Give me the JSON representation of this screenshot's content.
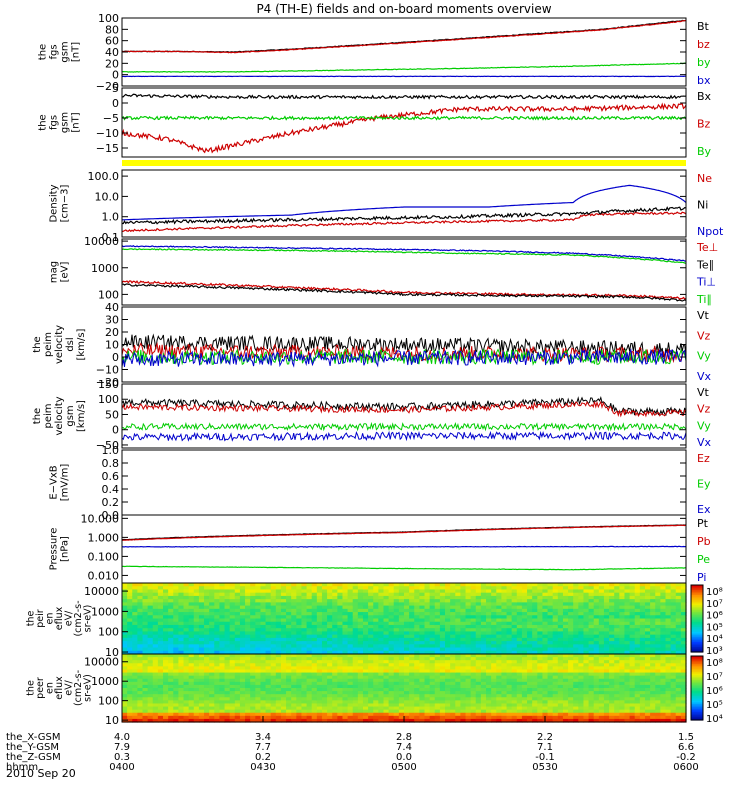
{
  "title": "P4 (TH-E) fields and on-board moments overview",
  "date": "2010 Sep 20",
  "chart_data": {
    "type": "line",
    "title": "P4 (TH-E) fields and on-board moments overview",
    "x": {
      "label": "hhmm",
      "ticks": [
        "0400",
        "0430",
        "0500",
        "0530",
        "0600"
      ],
      "ephemeris": [
        {
          "label": "the_X-GSM",
          "values": [
            "4.0",
            "3.4",
            "2.8",
            "2.2",
            "1.5"
          ]
        },
        {
          "label": "the_Y-GSM",
          "values": [
            "7.9",
            "7.7",
            "7.4",
            "7.1",
            "6.6"
          ]
        },
        {
          "label": "the_Z-GSM",
          "values": [
            "0.3",
            "0.2",
            "0.0",
            "-0.1",
            "-0.2"
          ]
        }
      ]
    },
    "panels": [
      {
        "ylabel": [
          "the",
          "fgs",
          "gsm",
          "[nT]"
        ],
        "scale": "linear",
        "ylim": [
          -20,
          100
        ],
        "tick_values": [
          -20,
          0,
          20,
          40,
          60,
          80,
          100
        ],
        "tick_labels": [
          "−20",
          "0",
          "20",
          "40",
          "60",
          "80",
          "100"
        ],
        "series": [
          {
            "name": "Bt",
            "color": "#000000",
            "x": [
              0,
              0.1,
              0.2,
              0.3,
              0.5,
              0.7,
              0.85,
              1.0
            ],
            "y": [
              41,
              41,
              40,
              45,
              57,
              70,
              80,
              96
            ],
            "noise": 0.6
          },
          {
            "name": "bz",
            "color": "#cc0000",
            "x": [
              0,
              0.1,
              0.2,
              0.3,
              0.5,
              0.7,
              0.85,
              1.0
            ],
            "y": [
              41,
              41,
              39,
              44,
              56,
              69,
              79,
              95
            ],
            "noise": 0.6
          },
          {
            "name": "by",
            "color": "#00cc00",
            "x": [
              0,
              0.2,
              0.4,
              0.6,
              0.8,
              1.0
            ],
            "y": [
              5,
              5,
              8,
              11,
              15,
              20
            ],
            "noise": 0.5
          },
          {
            "name": "bx",
            "color": "#0000cc",
            "x": [
              0,
              0.3,
              0.6,
              0.9,
              1.0
            ],
            "y": [
              -3,
              -3,
              -3,
              -3,
              -3
            ],
            "noise": 0.3
          }
        ]
      },
      {
        "ylabel": [
          "the",
          "fgs",
          "gsm",
          "[nT]"
        ],
        "scale": "linear",
        "ylim": [
          -18,
          5
        ],
        "tick_values": [
          -15,
          -10,
          -5,
          0,
          5
        ],
        "tick_labels": [
          "−15",
          "−10",
          "−5",
          "0",
          "5"
        ],
        "series": [
          {
            "name": "Bx",
            "color": "#000000",
            "x": [
              0,
              0.2,
              0.4,
              0.6,
              0.8,
              1.0
            ],
            "y": [
              2.5,
              2.0,
              2.0,
              2.0,
              2.0,
              2.0
            ],
            "noise": 0.5
          },
          {
            "name": "Bz",
            "color": "#cc0000",
            "x": [
              0,
              0.08,
              0.15,
              0.3,
              0.45,
              0.6,
              0.8,
              1.0
            ],
            "y": [
              -10,
              -12,
              -16,
              -10,
              -5,
              -2,
              -2,
              -1
            ],
            "noise": 0.8
          },
          {
            "name": "By",
            "color": "#00cc00",
            "x": [
              0,
              0.2,
              0.4,
              0.6,
              0.8,
              1.0
            ],
            "y": [
              -5,
              -5,
              -5,
              -5,
              -5,
              -5
            ],
            "noise": 0.5
          }
        ]
      },
      {
        "ylabel": [
          "Density",
          "[cm−3]"
        ],
        "scale": "log",
        "ylim": [
          0.1,
          200
        ],
        "tick_values": [
          0.1,
          1.0,
          10.0,
          100.0
        ],
        "tick_labels": [
          "0.1",
          "1.0",
          "10.0",
          "100.0"
        ],
        "series": [
          {
            "name": "Ne",
            "color": "#cc0000",
            "x": [
              0,
              0.2,
              0.5,
              0.8,
              0.82,
              0.88,
              1.0
            ],
            "y": [
              0.2,
              0.3,
              0.5,
              0.7,
              1.2,
              1.4,
              1.5
            ],
            "noise": 0.05
          },
          {
            "name": "Ni",
            "color": "#000000",
            "x": [
              0,
              0.3,
              0.6,
              0.8,
              0.9,
              1.0
            ],
            "y": [
              0.5,
              0.7,
              1.0,
              1.4,
              2.0,
              2.6
            ],
            "noise": 0.08
          },
          {
            "name": "Npot",
            "color": "#0000cc",
            "x": [
              0,
              0.3,
              0.5,
              0.65,
              0.8,
              0.9,
              1.0
            ],
            "y": [
              0.7,
              1.2,
              3.0,
              3.0,
              5.0,
              35.0,
              5.0
            ],
            "noise": 0
          }
        ]
      },
      {
        "ylabel": [
          "mag",
          "[eV]"
        ],
        "scale": "log",
        "ylim": [
          40,
          12000
        ],
        "tick_values": [
          100,
          1000,
          10000
        ],
        "tick_labels": [
          "100",
          "1000",
          "10000"
        ],
        "series": [
          {
            "name": "Te⊥",
            "color": "#cc0000",
            "x": [
              0,
              0.3,
              0.5,
              0.7,
              0.9,
              1.0
            ],
            "y": [
              300,
              180,
              120,
              100,
              90,
              70
            ],
            "noise": 0.04
          },
          {
            "name": "Te∥",
            "color": "#000000",
            "x": [
              0,
              0.3,
              0.5,
              0.7,
              0.9,
              1.0
            ],
            "y": [
              230,
              150,
              100,
              90,
              80,
              60
            ],
            "noise": 0.04
          },
          {
            "name": "Ti⊥",
            "color": "#0000cc",
            "x": [
              0,
              0.3,
              0.6,
              0.8,
              1.0
            ],
            "y": [
              6500,
              5500,
              4500,
              3500,
              1800
            ],
            "noise": 0.02
          },
          {
            "name": "Ti∥",
            "color": "#00cc00",
            "x": [
              0,
              0.3,
              0.6,
              0.8,
              1.0
            ],
            "y": [
              5000,
              4500,
              3500,
              3000,
              1500
            ],
            "noise": 0.02
          }
        ]
      },
      {
        "ylabel": [
          "the",
          "peim",
          "velocity",
          "dsl",
          "[km/s]"
        ],
        "scale": "linear",
        "ylim": [
          -20,
          40
        ],
        "tick_values": [
          -20,
          -10,
          0,
          10,
          20,
          30,
          40
        ],
        "tick_labels": [
          "−20",
          "−10",
          "0",
          "10",
          "20",
          "30",
          "40"
        ],
        "series": [
          {
            "name": "Vt",
            "color": "#000000",
            "x": [
              0,
              0.5,
              1.0
            ],
            "y": [
              12,
              10,
              6
            ],
            "noise": 6
          },
          {
            "name": "Vz",
            "color": "#cc0000",
            "x": [
              0,
              0.5,
              1.0
            ],
            "y": [
              5,
              3,
              2
            ],
            "noise": 6
          },
          {
            "name": "Vy",
            "color": "#00cc00",
            "x": [
              0,
              0.5,
              1.0
            ],
            "y": [
              0,
              0,
              0
            ],
            "noise": 6
          },
          {
            "name": "Vx",
            "color": "#0000cc",
            "x": [
              0,
              0.5,
              1.0
            ],
            "y": [
              -2,
              -1,
              0
            ],
            "noise": 6
          }
        ]
      },
      {
        "ylabel": [
          "the",
          "peim",
          "velocity",
          "gsm",
          "[km/s]"
        ],
        "scale": "linear",
        "ylim": [
          -60,
          150
        ],
        "tick_values": [
          -50,
          0,
          50,
          100,
          150
        ],
        "tick_labels": [
          "−50",
          "0",
          "50",
          "100",
          "150"
        ],
        "series": [
          {
            "name": "Vt",
            "color": "#000000",
            "x": [
              0,
              0.5,
              0.85,
              0.88,
              1.0
            ],
            "y": [
              90,
              75,
              95,
              60,
              60
            ],
            "noise": 12
          },
          {
            "name": "Vz",
            "color": "#cc0000",
            "x": [
              0,
              0.5,
              0.85,
              0.88,
              1.0
            ],
            "y": [
              75,
              65,
              85,
              55,
              55
            ],
            "noise": 10
          },
          {
            "name": "Vy",
            "color": "#00cc00",
            "x": [
              0,
              0.5,
              1.0
            ],
            "y": [
              10,
              10,
              10
            ],
            "noise": 10
          },
          {
            "name": "Vx",
            "color": "#0000cc",
            "x": [
              0,
              0.5,
              1.0
            ],
            "y": [
              -25,
              -20,
              -20
            ],
            "noise": 12
          }
        ]
      },
      {
        "ylabel": [
          "E−VxB",
          "[mV/m]"
        ],
        "scale": "linear",
        "ylim": [
          0,
          1
        ],
        "tick_values": [
          0.0,
          0.2,
          0.4,
          0.6,
          0.8,
          1.0
        ],
        "tick_labels": [
          "0.0",
          "0.2",
          "0.4",
          "0.6",
          "0.8",
          "1.0"
        ],
        "series": [
          {
            "name": "Ez",
            "color": "#cc0000",
            "x": [],
            "y": [],
            "noise": 0
          },
          {
            "name": "Ey",
            "color": "#00cc00",
            "x": [],
            "y": [],
            "noise": 0
          },
          {
            "name": "Ex",
            "color": "#0000cc",
            "x": [],
            "y": [],
            "noise": 0
          }
        ]
      },
      {
        "ylabel": [
          "Pressure",
          "[nPa]"
        ],
        "scale": "log",
        "ylim": [
          0.004,
          15
        ],
        "tick_values": [
          0.01,
          0.1,
          1.0,
          10.0
        ],
        "tick_labels": [
          "0.010",
          "0.100",
          "1.000",
          "10.000"
        ],
        "series": [
          {
            "name": "Pt",
            "color": "#000000",
            "x": [
              0,
              0.5,
              1.0
            ],
            "y": [
              0.75,
              1.9,
              4.5
            ],
            "noise": 0.01
          },
          {
            "name": "Pb",
            "color": "#cc0000",
            "x": [
              0,
              0.5,
              1.0
            ],
            "y": [
              0.7,
              1.8,
              4.3
            ],
            "noise": 0.01
          },
          {
            "name": "Pe",
            "color": "#00cc00",
            "x": [
              0,
              0.5,
              0.8,
              1.0
            ],
            "y": [
              0.03,
              0.023,
              0.02,
              0.025
            ],
            "noise": 0.01
          },
          {
            "name": "Pi",
            "color": "#0000cc",
            "x": [
              0,
              0.5,
              1.0
            ],
            "y": [
              0.32,
              0.32,
              0.33
            ],
            "noise": 0.01
          }
        ]
      }
    ],
    "spectrograms": [
      {
        "ylabel": [
          "the",
          "peir",
          "en",
          "eflux",
          "eV/",
          "(cm2-s-",
          "sr-eV)"
        ],
        "ylim": [
          8,
          25000
        ],
        "tick_values": [
          10,
          100,
          1000,
          10000
        ],
        "tick_labels": [
          "10",
          "100",
          "1000",
          "10000"
        ],
        "colorbar_ticks": [
          "10⁸",
          "10⁷",
          "10⁶",
          "10⁵",
          "10⁴",
          "10³"
        ]
      },
      {
        "ylabel": [
          "the",
          "peer",
          "en",
          "eflux",
          "eV/",
          "(cm2-s-",
          "sr-eV)"
        ],
        "ylim": [
          8,
          25000
        ],
        "tick_values": [
          10,
          100,
          1000,
          10000
        ],
        "tick_labels": [
          "10",
          "100",
          "1000",
          "10000"
        ],
        "colorbar_ticks": [
          "10⁸",
          "10⁷",
          "10⁶",
          "10⁵",
          "10⁴"
        ]
      }
    ]
  }
}
